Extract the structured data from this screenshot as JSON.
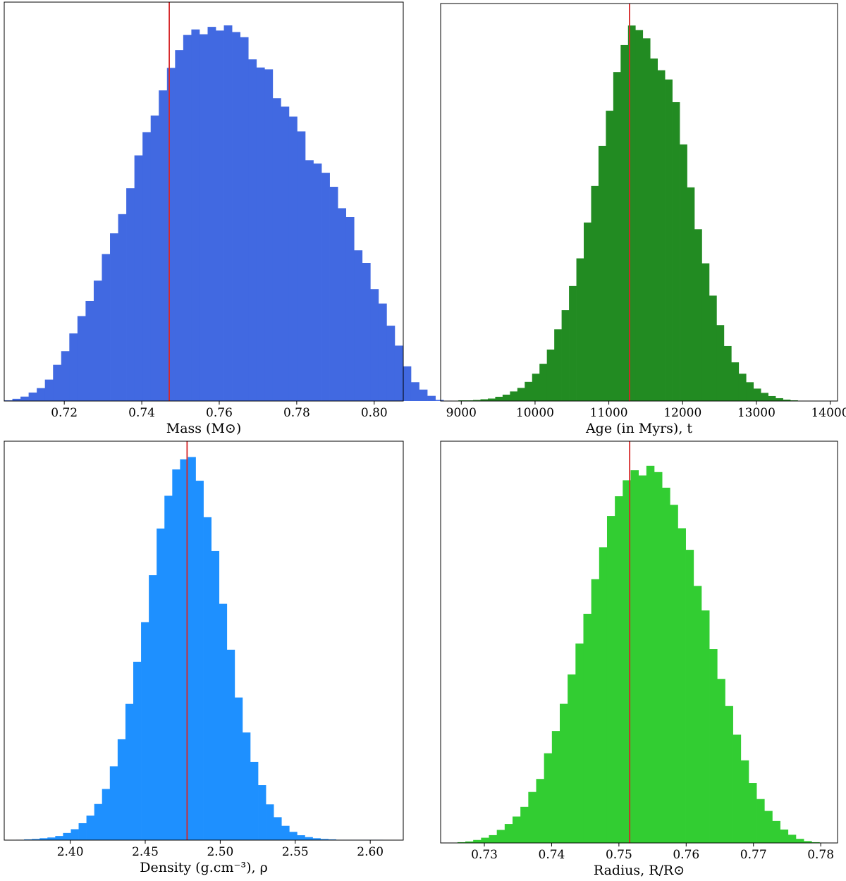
{
  "chart_data": [
    {
      "type": "histogram",
      "xlabel": "Mass (M⊙)",
      "xlim": [
        0.7045,
        0.8075
      ],
      "ymax": 1.08,
      "bin_start": 0.7045,
      "bin_width": 0.0021,
      "counts": [
        0.002,
        0.006,
        0.012,
        0.023,
        0.035,
        0.058,
        0.098,
        0.135,
        0.183,
        0.23,
        0.271,
        0.326,
        0.398,
        0.454,
        0.506,
        0.576,
        0.665,
        0.728,
        0.773,
        0.841,
        0.902,
        0.95,
        0.991,
        1.006,
        0.993,
        1.013,
        1.003,
        1.017,
        0.999,
        0.985,
        0.925,
        0.903,
        0.898,
        0.82,
        0.797,
        0.77,
        0.73,
        0.652,
        0.643,
        0.618,
        0.58,
        0.522,
        0.498,
        0.408,
        0.374,
        0.303,
        0.264,
        0.204,
        0.15,
        0.094,
        0.051,
        0.031,
        0.014,
        0.003,
        0.001
      ],
      "ticks": [
        "0.72",
        "0.74",
        "0.76",
        "0.78",
        "0.80"
      ],
      "tick_values": [
        0.72,
        0.74,
        0.76,
        0.78,
        0.8
      ],
      "color": "#4169E1",
      "marker_value": 0.7471,
      "marker_color": "#D62728"
    },
    {
      "type": "histogram",
      "xlabel": "Age (in Myrs), t",
      "xlim": [
        8720,
        14100
      ],
      "ymax": 1.12,
      "bin_start": 8760,
      "bin_width": 100,
      "counts": [
        0.001,
        0.001,
        0.002,
        0.002,
        0.003,
        0.005,
        0.007,
        0.012,
        0.018,
        0.027,
        0.037,
        0.054,
        0.077,
        0.105,
        0.145,
        0.202,
        0.256,
        0.324,
        0.402,
        0.503,
        0.606,
        0.719,
        0.818,
        0.927,
        1.003,
        1.058,
        1.045,
        1.022,
        0.965,
        0.932,
        0.906,
        0.842,
        0.723,
        0.602,
        0.484,
        0.388,
        0.297,
        0.214,
        0.155,
        0.109,
        0.077,
        0.053,
        0.035,
        0.023,
        0.014,
        0.008,
        0.004,
        0.002,
        0.001,
        0.001
      ],
      "ticks": [
        "9000",
        "10000",
        "11000",
        "12000",
        "13000",
        "14000"
      ],
      "tick_values": [
        9000,
        10000,
        11000,
        12000,
        13000,
        14000
      ],
      "color": "#228B22",
      "marker_value": 11280,
      "marker_color": "#D62728"
    },
    {
      "type": "histogram",
      "xlabel": "Density (g.cm⁻³), ρ",
      "xlim": [
        2.356,
        2.622
      ],
      "ymax": 1.06,
      "bin_start": 2.364,
      "bin_width": 0.0052,
      "counts": [
        0.001,
        0.002,
        0.003,
        0.005,
        0.007,
        0.011,
        0.019,
        0.029,
        0.045,
        0.065,
        0.096,
        0.136,
        0.196,
        0.268,
        0.362,
        0.474,
        0.579,
        0.704,
        0.828,
        0.915,
        0.985,
        1.012,
        1.018,
        0.955,
        0.858,
        0.768,
        0.628,
        0.506,
        0.379,
        0.286,
        0.208,
        0.146,
        0.095,
        0.061,
        0.038,
        0.022,
        0.013,
        0.008,
        0.005,
        0.003,
        0.002,
        0.001,
        0.001,
        0.001,
        0.001,
        0.001,
        0.001
      ],
      "ticks": [
        "2.40",
        "2.45",
        "2.50",
        "2.55",
        "2.60"
      ],
      "tick_values": [
        2.4,
        2.45,
        2.5,
        2.55,
        2.6
      ],
      "color": "#1E90FF",
      "marker_value": 2.4779,
      "marker_color": "#D62728"
    },
    {
      "type": "histogram",
      "xlabel": "Radius, R/R⊙",
      "xlim": [
        0.7235,
        0.7825
      ],
      "ymax": 1.08,
      "bin_start": 0.726,
      "bin_width": 0.00117,
      "counts": [
        0.002,
        0.004,
        0.008,
        0.014,
        0.021,
        0.035,
        0.051,
        0.071,
        0.097,
        0.137,
        0.172,
        0.241,
        0.301,
        0.374,
        0.453,
        0.536,
        0.616,
        0.709,
        0.795,
        0.879,
        0.932,
        0.975,
        1.002,
        0.988,
        1.014,
        0.997,
        0.955,
        0.909,
        0.846,
        0.788,
        0.691,
        0.625,
        0.521,
        0.441,
        0.368,
        0.291,
        0.222,
        0.161,
        0.118,
        0.086,
        0.059,
        0.036,
        0.022,
        0.011,
        0.005,
        0.002,
        0.001
      ],
      "ticks": [
        "0.73",
        "0.74",
        "0.75",
        "0.76",
        "0.77",
        "0.78"
      ],
      "tick_values": [
        0.73,
        0.74,
        0.75,
        0.76,
        0.77,
        0.78
      ],
      "color": "#32CD32",
      "marker_value": 0.7516,
      "marker_color": "#D62728"
    }
  ]
}
